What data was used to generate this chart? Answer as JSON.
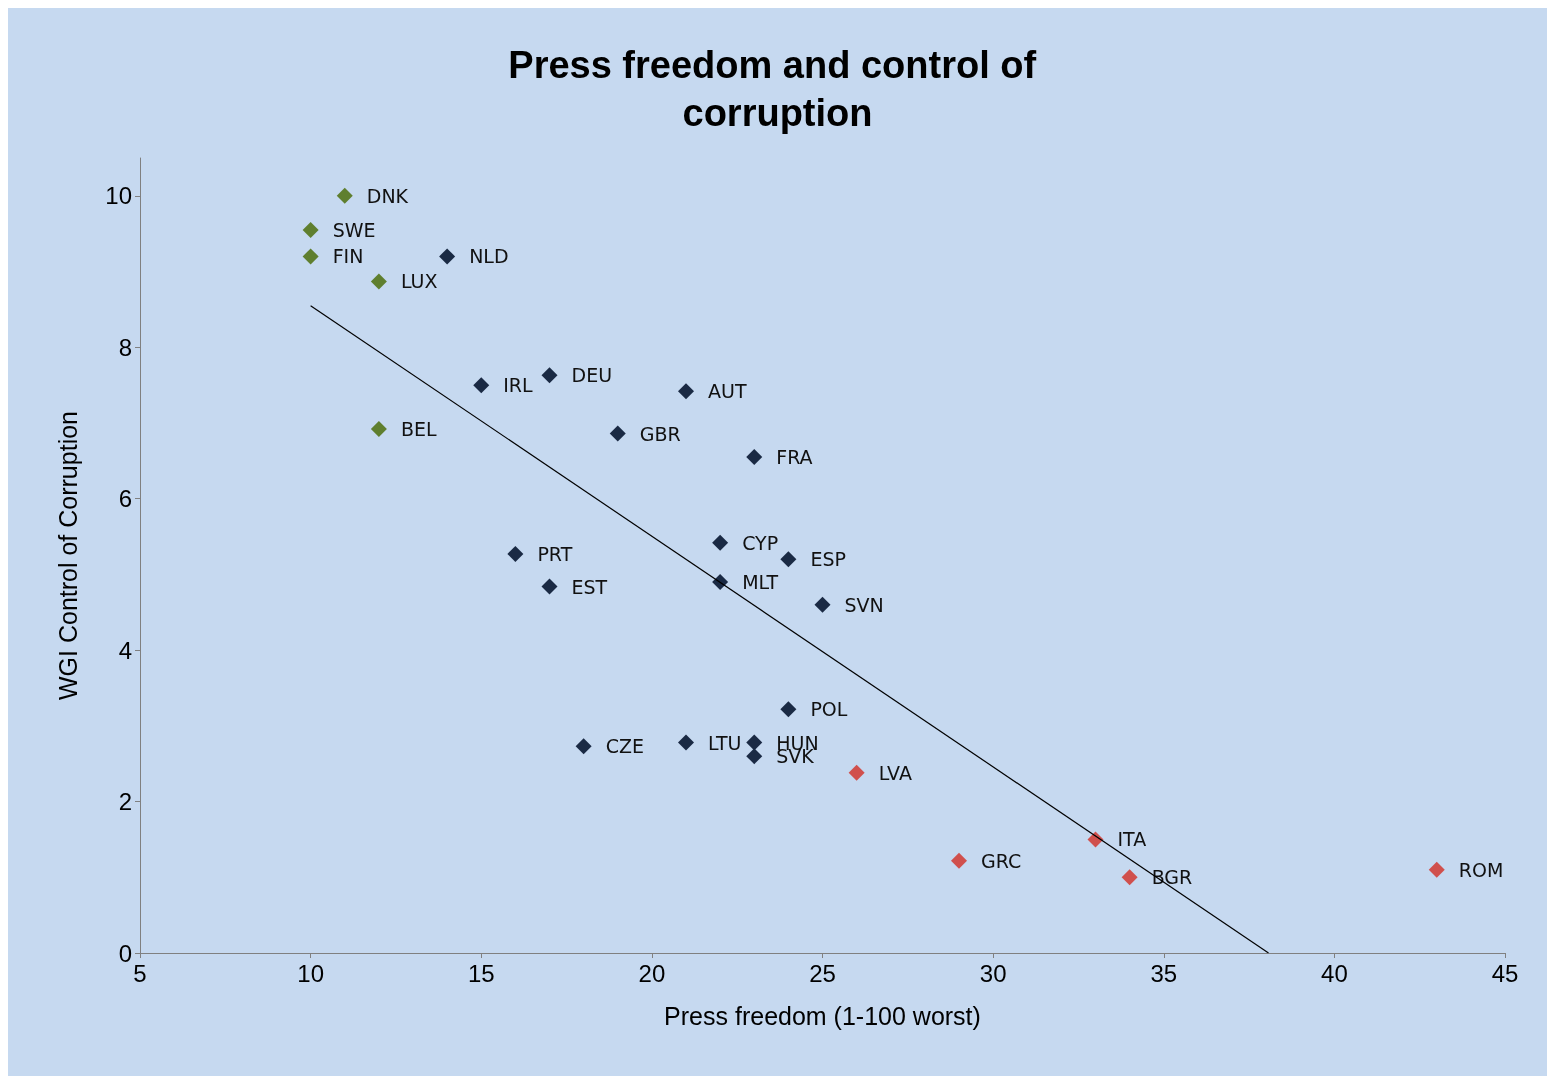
{
  "chart_data": {
    "type": "scatter",
    "title": "Press freedom and control of corruption",
    "xlabel": "Press freedom (1-100 worst)",
    "ylabel": "WGI Control of Corruption",
    "xlim": [
      5,
      45
    ],
    "xticks": [
      5,
      10,
      15,
      20,
      25,
      30,
      35,
      40,
      45
    ],
    "ylim": [
      0,
      10.5
    ],
    "yticks": [
      0,
      2,
      4,
      6,
      8,
      10
    ],
    "grid": false,
    "marker": "diamond",
    "series": [
      {
        "color": "#5f7f2f",
        "x": [
          11,
          10,
          10,
          12,
          12
        ],
        "values": [
          10,
          9.55,
          9.2,
          8.87,
          6.92
        ],
        "value_labels": [
          "DNK",
          "SWE",
          "FIN",
          "LUX",
          "BEL"
        ]
      },
      {
        "color": "#1a2a44",
        "x": [
          14,
          15,
          17,
          21,
          19,
          23,
          22,
          24,
          16,
          17,
          22,
          25,
          24,
          18,
          21,
          23,
          23
        ],
        "values": [
          9.2,
          7.5,
          7.63,
          7.42,
          6.86,
          6.55,
          5.42,
          5.2,
          5.27,
          4.84,
          4.9,
          4.6,
          3.22,
          2.73,
          2.78,
          2.78,
          2.6
        ],
        "value_labels": [
          "NLD",
          "IRL",
          "DEU",
          "AUT",
          "GBR",
          "FRA",
          "CYP",
          "ESP",
          "PRT",
          "EST",
          "MLT",
          "SVN",
          "POL",
          "CZE",
          "LTU",
          "HUN",
          "SVK"
        ]
      },
      {
        "color": "#d0504d",
        "x": [
          26,
          29,
          33,
          34,
          43
        ],
        "values": [
          2.38,
          1.22,
          1.5,
          1.0,
          1.1
        ],
        "value_labels": [
          "LVA",
          "GRC",
          "ITA",
          "BGR",
          "ROM"
        ]
      },
      {
        "type": "line",
        "color": "#000000",
        "x": [
          10,
          38.07
        ],
        "values": [
          8.55,
          0
        ],
        "marker": "none",
        "line_style": "solid"
      }
    ]
  }
}
